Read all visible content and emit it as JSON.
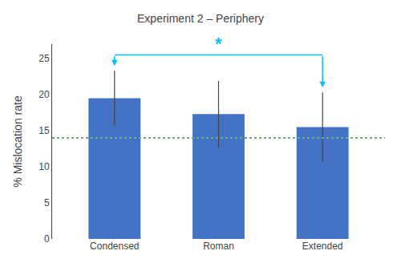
{
  "chart_data": {
    "type": "bar",
    "title": "Experiment 2 – Periphery",
    "categories": [
      "Condensed",
      "Roman",
      "Extended"
    ],
    "values": [
      19.5,
      17.3,
      15.5
    ],
    "errors": [
      3.8,
      4.6,
      4.8
    ],
    "color": "#4472C4",
    "ylim": [
      0,
      27
    ],
    "yticks": [
      0,
      5,
      10,
      15,
      20,
      25
    ],
    "ylabel": "% Mislocation rate",
    "grid": false,
    "lines": [
      {
        "y": 14.0,
        "color": "#5DBB5D",
        "line_style": "dotted"
      }
    ],
    "annotations": [
      {
        "text": "*",
        "x": [
          "Condensed",
          "Extended"
        ],
        "y": 25.5,
        "color": "#00BFFF"
      }
    ]
  }
}
